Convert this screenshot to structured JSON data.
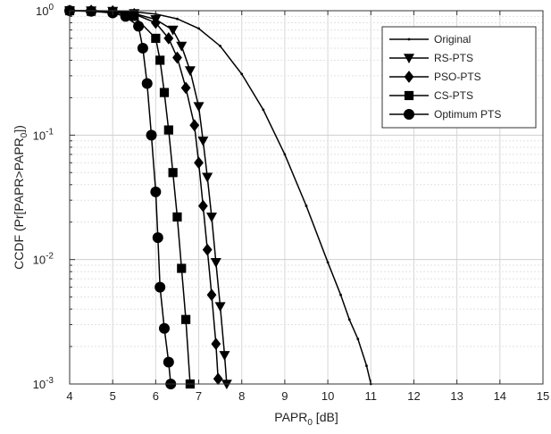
{
  "chart_data": {
    "type": "line",
    "title": "",
    "xlabel_main": "PAPR",
    "xlabel_sub": "0",
    "xlabel_unit": " [dB]",
    "ylabel_main": "CCDF (Pr[PAPR>PAPR",
    "ylabel_sub": "0",
    "ylabel_end": "])",
    "xlim": [
      4,
      15
    ],
    "ylim": [
      0.001,
      1
    ],
    "yscale": "log",
    "grid": true,
    "legend_position": "top-right",
    "x_ticks": [
      4,
      5,
      6,
      7,
      8,
      9,
      10,
      11,
      12,
      13,
      14,
      15
    ],
    "x_tick_labels": [
      "4",
      "5",
      "6",
      "7",
      "8",
      "9",
      "10",
      "11",
      "12",
      "13",
      "14",
      "15"
    ],
    "y_ticks": [
      {
        "value": 1,
        "base": "10",
        "exp": "0"
      },
      {
        "value": 0.1,
        "base": "10",
        "exp": "-1"
      },
      {
        "value": 0.01,
        "base": "10",
        "exp": "-2"
      },
      {
        "value": 0.001,
        "base": "10",
        "exp": "-3"
      }
    ],
    "series": [
      {
        "name": "Original",
        "marker": "dot",
        "x": [
          4.0,
          4.5,
          5.0,
          5.5,
          6.0,
          6.5,
          7.0,
          7.5,
          8.0,
          8.5,
          9.0,
          9.5,
          10.0,
          10.3,
          10.5,
          10.7,
          10.9,
          11.0
        ],
        "y": [
          1.0,
          1.0,
          0.995,
          0.98,
          0.94,
          0.86,
          0.72,
          0.52,
          0.31,
          0.16,
          0.07,
          0.027,
          0.0095,
          0.0052,
          0.0033,
          0.0023,
          0.0014,
          0.001
        ]
      },
      {
        "name": "RS-PTS",
        "marker": "triangle-down",
        "x": [
          4.0,
          4.5,
          5.0,
          5.5,
          6.0,
          6.4,
          6.6,
          6.8,
          7.0,
          7.1,
          7.2,
          7.3,
          7.4,
          7.5,
          7.6,
          7.65
        ],
        "y": [
          1.0,
          1.0,
          0.99,
          0.95,
          0.85,
          0.7,
          0.52,
          0.33,
          0.17,
          0.09,
          0.046,
          0.022,
          0.0095,
          0.0042,
          0.0017,
          0.001
        ]
      },
      {
        "name": "PSO-PTS",
        "marker": "diamond",
        "x": [
          4.0,
          4.5,
          5.0,
          5.5,
          6.0,
          6.3,
          6.5,
          6.7,
          6.9,
          7.0,
          7.1,
          7.2,
          7.3,
          7.4,
          7.45
        ],
        "y": [
          1.0,
          1.0,
          0.99,
          0.94,
          0.8,
          0.6,
          0.42,
          0.24,
          0.12,
          0.06,
          0.027,
          0.012,
          0.0052,
          0.0021,
          0.0011
        ]
      },
      {
        "name": "CS-PTS",
        "marker": "square",
        "x": [
          4.0,
          4.5,
          5.0,
          5.5,
          6.0,
          6.1,
          6.2,
          6.3,
          6.4,
          6.5,
          6.6,
          6.7,
          6.8
        ],
        "y": [
          1.0,
          0.99,
          0.98,
          0.9,
          0.6,
          0.4,
          0.22,
          0.11,
          0.05,
          0.022,
          0.0085,
          0.0033,
          0.001
        ]
      },
      {
        "name": "Optimum PTS",
        "marker": "circle",
        "x": [
          4.0,
          4.5,
          5.0,
          5.3,
          5.6,
          5.7,
          5.8,
          5.9,
          6.0,
          6.05,
          6.1,
          6.2,
          6.3,
          6.35
        ],
        "y": [
          1.0,
          0.99,
          0.96,
          0.9,
          0.75,
          0.5,
          0.26,
          0.1,
          0.035,
          0.015,
          0.006,
          0.0028,
          0.0015,
          0.001
        ]
      }
    ]
  }
}
